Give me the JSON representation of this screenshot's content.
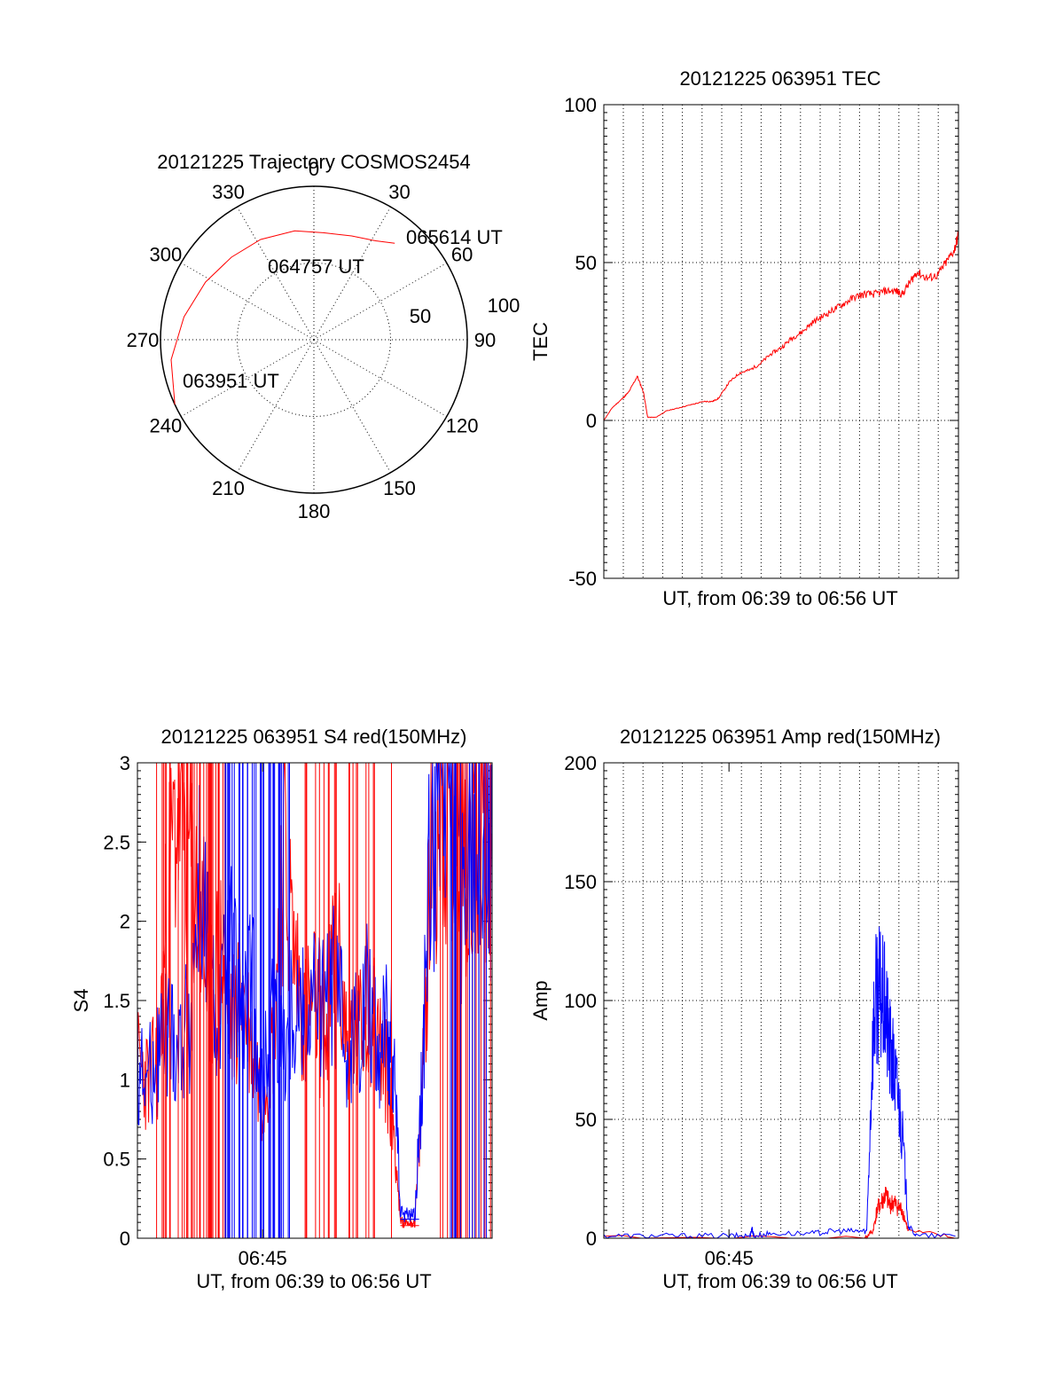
{
  "colors": {
    "red": "#ff0000",
    "blue": "#0000ff",
    "axis": "#000000"
  },
  "chart_data": [
    {
      "type": "polar",
      "title": "20121225 Trajectory COSMOS2454",
      "angle_labels": [
        "0",
        "30",
        "60",
        "90",
        "120",
        "150",
        "180",
        "210",
        "240",
        "270",
        "300",
        "330"
      ],
      "angles_deg": [
        0,
        30,
        60,
        90,
        120,
        150,
        180,
        210,
        240,
        270,
        300,
        330
      ],
      "radial_labels": [
        "50",
        "100"
      ],
      "radial_values": [
        50,
        100
      ],
      "annotations": [
        {
          "text": "065614 UT"
        },
        {
          "text": "064757 UT"
        },
        {
          "text": "063951 UT"
        }
      ],
      "trajectory": {
        "azimuth_deg": [
          245,
          262,
          280,
          298,
          315,
          332,
          350,
          5,
          20,
          32,
          40
        ],
        "zenith": [
          100,
          94,
          86,
          80,
          76,
          74,
          72,
          70,
          72,
          76,
          82
        ]
      },
      "series_color": "#ff0000"
    },
    {
      "type": "line",
      "title": "20121225 063951 TEC",
      "xlabel": "UT, from 06:39 to 06:56 UT",
      "ylabel": "TEC",
      "ylim": [
        -50,
        100
      ],
      "yticks": [
        "-50",
        "0",
        "50",
        "100"
      ],
      "ytick_values": [
        -50,
        0,
        50,
        100
      ],
      "xlim": [
        0,
        17
      ],
      "series": [
        {
          "color": "#ff0000",
          "x": [
            0.0,
            0.4,
            0.9,
            1.2,
            1.6,
            1.9,
            2.1,
            2.5,
            3.0,
            3.6,
            4.2,
            4.8,
            5.2,
            5.5,
            6.0,
            6.5,
            7.0,
            7.5,
            8.0,
            8.5,
            9.0,
            9.5,
            10.0,
            10.5,
            11.0,
            11.5,
            12.0,
            12.5,
            13.0,
            13.5,
            14.0,
            14.3,
            14.7,
            15.0,
            15.5,
            16.0,
            16.4,
            16.8,
            17.0
          ],
          "y": [
            0,
            4,
            7,
            9,
            14,
            9,
            1,
            1,
            3,
            4,
            5,
            6,
            6,
            7,
            12,
            15,
            16,
            18,
            21,
            23,
            26,
            28,
            31,
            33,
            35,
            37,
            39,
            40,
            40,
            41,
            41,
            40,
            44,
            47,
            45,
            46,
            50,
            54,
            59
          ]
        }
      ]
    },
    {
      "type": "line",
      "title": "20121225 063951 S4 red(150MHz)",
      "xlabel": "UT, from 06:39 to 06:56 UT",
      "ylabel": "S4",
      "ylim": [
        0,
        3
      ],
      "yticks": [
        "0",
        "0.5",
        "1",
        "1.5",
        "2",
        "2.5",
        "3"
      ],
      "ytick_values": [
        0,
        0.5,
        1,
        1.5,
        2,
        2.5,
        3
      ],
      "xlim": [
        0,
        17
      ],
      "xtick_label": "06:45",
      "xtick_value": 6,
      "series": [
        {
          "color": "#ff0000",
          "x": [
            0.0,
            0.5,
            1.0,
            1.5,
            2.0,
            2.5,
            3.0,
            3.5,
            4.0,
            4.5,
            5.0,
            5.5,
            6.0,
            6.5,
            7.0,
            7.5,
            8.0,
            8.5,
            9.0,
            9.5,
            10.0,
            10.5,
            11.0,
            11.5,
            12.0,
            12.3,
            12.6,
            13.0,
            13.3,
            13.6,
            14.0,
            14.5,
            15.0,
            15.5,
            16.0,
            16.5,
            17.0
          ],
          "y": [
            1.1,
            1.0,
            1.1,
            2.2,
            2.8,
            2.4,
            2.0,
            1.5,
            1.8,
            1.3,
            1.6,
            1.2,
            0.9,
            1.3,
            2.5,
            1.8,
            1.4,
            1.5,
            1.2,
            1.9,
            1.3,
            1.2,
            1.5,
            1.3,
            1.0,
            0.7,
            0.1,
            0.1,
            0.1,
            0.8,
            2.2,
            2.8,
            2.5,
            2.6,
            2.4,
            2.9,
            2.3
          ]
        },
        {
          "color": "#0000ff",
          "x": [
            0.0,
            0.5,
            1.0,
            1.5,
            2.0,
            2.5,
            3.0,
            3.5,
            4.0,
            4.5,
            5.0,
            5.5,
            6.0,
            6.5,
            7.0,
            7.5,
            8.0,
            8.5,
            9.0,
            9.5,
            10.0,
            10.5,
            11.0,
            11.5,
            12.0,
            12.3,
            12.6,
            13.0,
            13.3,
            13.6,
            14.0,
            14.5,
            15.0,
            15.5,
            16.0,
            16.5,
            17.0
          ],
          "y": [
            1.1,
            1.0,
            1.2,
            1.3,
            1.2,
            1.4,
            2.3,
            1.5,
            1.4,
            1.8,
            1.3,
            1.6,
            0.9,
            1.5,
            1.2,
            1.5,
            1.4,
            1.5,
            1.4,
            1.6,
            1.2,
            1.3,
            1.6,
            1.2,
            1.3,
            1.2,
            0.15,
            0.15,
            0.15,
            0.9,
            2.4,
            2.7,
            2.9,
            2.2,
            2.6,
            2.8,
            2.4
          ]
        }
      ]
    },
    {
      "type": "line",
      "title": "20121225 063951 Amp red(150MHz)",
      "xlabel": "UT, from 06:39 to 06:56 UT",
      "ylabel": "Amp",
      "ylim": [
        0,
        200
      ],
      "yticks": [
        "0",
        "50",
        "100",
        "150",
        "200"
      ],
      "ytick_values": [
        0,
        50,
        100,
        150,
        200
      ],
      "xlim": [
        0,
        17
      ],
      "xtick_label": "06:45",
      "xtick_value": 6,
      "series": [
        {
          "color": "#ff0000",
          "x": [
            0,
            12.5,
            12.9,
            13.1,
            13.3,
            13.5,
            13.7,
            13.9,
            14.1,
            14.3,
            14.6,
            17
          ],
          "y": [
            0,
            0,
            3,
            12,
            15,
            18,
            14,
            15,
            13,
            12,
            3,
            0
          ]
        },
        {
          "color": "#0000ff",
          "x": [
            0,
            2,
            4,
            6,
            7,
            7.1,
            7.2,
            8,
            10,
            11,
            12,
            12.6,
            12.9,
            13.1,
            13.3,
            13.5,
            13.7,
            13.9,
            14.1,
            14.3,
            14.6,
            15,
            17
          ],
          "y": [
            1,
            1,
            1,
            1,
            1,
            4,
            1,
            2,
            2,
            3,
            3,
            3,
            85,
            105,
            100,
            95,
            80,
            70,
            60,
            45,
            5,
            1,
            1
          ]
        }
      ]
    }
  ]
}
